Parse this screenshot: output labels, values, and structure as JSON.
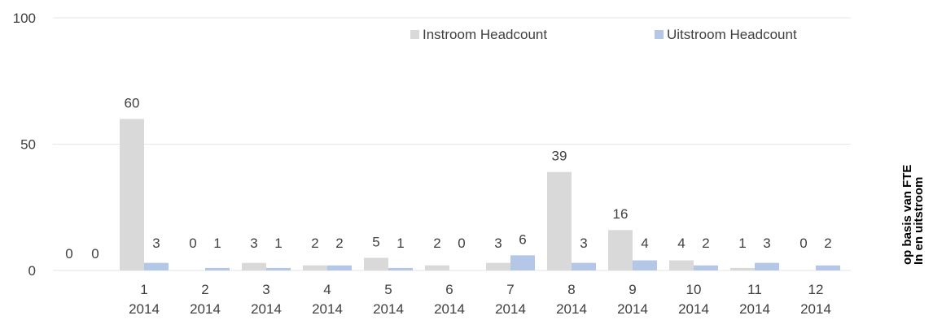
{
  "chart_data": {
    "type": "bar",
    "categories": [
      [
        "1",
        "2014"
      ],
      [
        "2",
        "2014"
      ],
      [
        "3",
        "2014"
      ],
      [
        "4",
        "2014"
      ],
      [
        "5",
        "2014"
      ],
      [
        "6",
        "2014"
      ],
      [
        "7",
        "2014"
      ],
      [
        "8",
        "2014"
      ],
      [
        "9",
        "2014"
      ],
      [
        "10",
        "2014"
      ],
      [
        "11",
        "2014"
      ],
      [
        "12",
        "2014"
      ]
    ],
    "leading_labels": [
      "0",
      "0"
    ],
    "series": [
      {
        "name": "Instroom Headcount",
        "color": "#d9d9d9",
        "values": [
          60,
          0,
          3,
          2,
          5,
          2,
          3,
          39,
          16,
          4,
          1,
          0
        ]
      },
      {
        "name": "Uitstroom Headcount",
        "color": "#b4c7e7",
        "values": [
          3,
          1,
          1,
          2,
          1,
          0,
          6,
          3,
          4,
          2,
          3,
          2
        ]
      }
    ],
    "ylim": [
      0,
      100
    ],
    "yticks": [
      0,
      50,
      100
    ],
    "grid": true,
    "legend_position": "top-right",
    "side_title": [
      "In en uitstroom",
      "op basis van FTE"
    ]
  }
}
